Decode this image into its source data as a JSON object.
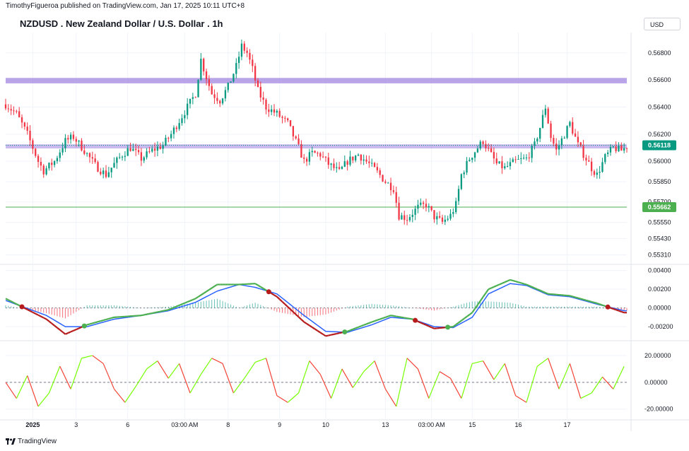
{
  "header": {
    "published_by": "TimothyFigueroa published on TradingView.com, Jan 17, 2025 10:11 UTC+8",
    "symbol_title": "NZDUSD . New Zealand Dollar / U.S. Dollar . 1h",
    "currency_button": "USD"
  },
  "footer": {
    "brand": "TradingView"
  },
  "colors": {
    "bull": "#089981",
    "bear": "#f23645",
    "zone": "#9c7fe0",
    "support": "#4caf50",
    "macd_fast": "#4caf50",
    "macd_slow": "#2962ff",
    "macd_alt": "#b71c1c",
    "osc_up": "#76ff03",
    "osc_down": "#f44336",
    "grid": "#f0f3fa"
  },
  "chart_data": [
    {
      "type": "candlestick",
      "title": "NZDUSD . New Zealand Dollar / U.S. Dollar . 1h",
      "ylim": [
        0.5525,
        0.5695
      ],
      "y_ticks": [
        "0.56800",
        "0.56600",
        "0.56400",
        "0.56200",
        "0.56000",
        "0.55850",
        "0.55700",
        "0.55550",
        "0.55430",
        "0.55310"
      ],
      "x_ticks": [
        "2025",
        "3",
        "6",
        "03:00 AM",
        "8",
        "9",
        "10",
        "13",
        "03:00 AM",
        "15",
        "16",
        "17"
      ],
      "price_path": [
        [
          0,
          0.5642
        ],
        [
          4,
          0.5635
        ],
        [
          8,
          0.562
        ],
        [
          12,
          0.56
        ],
        [
          14,
          0.5593
        ],
        [
          18,
          0.56
        ],
        [
          22,
          0.5615
        ],
        [
          25,
          0.5618
        ],
        [
          29,
          0.5608
        ],
        [
          33,
          0.5597
        ],
        [
          37,
          0.559
        ],
        [
          40,
          0.5598
        ],
        [
          43,
          0.5605
        ],
        [
          46,
          0.561
        ],
        [
          50,
          0.5602
        ],
        [
          54,
          0.5608
        ],
        [
          58,
          0.5612
        ],
        [
          61,
          0.562
        ],
        [
          64,
          0.563
        ],
        [
          67,
          0.564
        ],
        [
          70,
          0.565
        ],
        [
          72,
          0.5675
        ],
        [
          74,
          0.5662
        ],
        [
          76,
          0.565
        ],
        [
          79,
          0.5645
        ],
        [
          82,
          0.5655
        ],
        [
          85,
          0.567
        ],
        [
          87,
          0.5685
        ],
        [
          89,
          0.568
        ],
        [
          91,
          0.5668
        ],
        [
          93,
          0.5652
        ],
        [
          96,
          0.564
        ],
        [
          100,
          0.5635
        ],
        [
          104,
          0.5628
        ],
        [
          108,
          0.561
        ],
        [
          110,
          0.56
        ],
        [
          113,
          0.5606
        ],
        [
          116,
          0.5605
        ],
        [
          119,
          0.5598
        ],
        [
          123,
          0.5592
        ],
        [
          126,
          0.56
        ],
        [
          130,
          0.5605
        ],
        [
          134,
          0.5598
        ],
        [
          137,
          0.5592
        ],
        [
          140,
          0.5585
        ],
        [
          143,
          0.558
        ],
        [
          145,
          0.556
        ],
        [
          148,
          0.5558
        ],
        [
          152,
          0.5566
        ],
        [
          155,
          0.5568
        ],
        [
          158,
          0.5559
        ],
        [
          161,
          0.5555
        ],
        [
          164,
          0.556
        ],
        [
          166,
          0.5568
        ],
        [
          168,
          0.559
        ],
        [
          171,
          0.5602
        ],
        [
          174,
          0.561
        ],
        [
          176,
          0.5615
        ],
        [
          178,
          0.5608
        ],
        [
          181,
          0.5598
        ],
        [
          184,
          0.5595
        ],
        [
          188,
          0.56
        ],
        [
          192,
          0.5602
        ],
        [
          195,
          0.5612
        ],
        [
          197,
          0.5625
        ],
        [
          199,
          0.564
        ],
        [
          201,
          0.5618
        ],
        [
          203,
          0.5608
        ],
        [
          206,
          0.562
        ],
        [
          208,
          0.5628
        ],
        [
          211,
          0.5612
        ],
        [
          214,
          0.5602
        ],
        [
          216,
          0.5595
        ],
        [
          218,
          0.559
        ],
        [
          221,
          0.5603
        ],
        [
          224,
          0.561
        ],
        [
          227,
          0.5608
        ],
        [
          229,
          0.5611
        ]
      ],
      "last_price": "0.56118",
      "support_label": "0.55662",
      "resistance_zone": [
        0.56575,
        0.56615
      ],
      "mid_zone": [
        0.56095,
        0.56125
      ],
      "support_line": 0.55662
    },
    {
      "type": "line",
      "subtype": "macd",
      "ylim": [
        -0.00335,
        0.0045
      ],
      "y_ticks": [
        "0.00400",
        "0.00200",
        "0.00000",
        "-0.00200"
      ],
      "x": [
        0,
        15,
        22,
        30,
        40,
        50,
        60,
        70,
        78,
        86,
        92,
        100,
        110,
        118,
        126,
        135,
        142,
        150,
        158,
        165,
        172,
        178,
        186,
        192,
        200,
        208,
        218,
        228
      ],
      "series": [
        {
          "values": [
            0.001,
            -0.0012,
            -0.0028,
            -0.0018,
            -0.001,
            -0.0008,
            -0.0002,
            0.001,
            0.0025,
            0.0025,
            0.0026,
            0.0012,
            -0.0015,
            -0.003,
            -0.0025,
            -0.0015,
            -0.0008,
            -0.0012,
            -0.0022,
            -0.002,
            -0.0005,
            0.002,
            0.003,
            0.0025,
            0.0015,
            0.0013,
            0.0005,
            -0.0005
          ]
        },
        {
          "values": [
            0.0008,
            -0.0008,
            -0.002,
            -0.002,
            -0.0012,
            -0.0008,
            -0.0003,
            0.0006,
            0.0018,
            0.0025,
            0.0022,
            0.0015,
            -0.0008,
            -0.0025,
            -0.0026,
            -0.0018,
            -0.001,
            -0.0012,
            -0.002,
            -0.0021,
            -0.001,
            0.0015,
            0.0026,
            0.0024,
            0.0014,
            0.0012,
            0.0004,
            -0.0003
          ]
        }
      ]
    },
    {
      "type": "line",
      "subtype": "oscillator",
      "ylim": [
        -27,
        30
      ],
      "y_ticks": [
        "20.00000",
        "0.00000",
        "-20.00000"
      ],
      "x": [
        0,
        4,
        8,
        12,
        16,
        20,
        24,
        28,
        32,
        36,
        40,
        44,
        48,
        52,
        56,
        60,
        64,
        68,
        72,
        76,
        80,
        84,
        88,
        92,
        96,
        100,
        104,
        108,
        112,
        116,
        120,
        124,
        128,
        132,
        136,
        140,
        144,
        148,
        152,
        156,
        160,
        164,
        168,
        172,
        176,
        180,
        184,
        188,
        192,
        196,
        200,
        204,
        208,
        212,
        216,
        220,
        224,
        228
      ],
      "values": [
        0,
        -12,
        5,
        -18,
        -8,
        12,
        -5,
        18,
        20,
        14,
        -5,
        -15,
        -3,
        10,
        16,
        3,
        14,
        -8,
        6,
        18,
        14,
        -8,
        3,
        15,
        18,
        -10,
        -15,
        -8,
        16,
        6,
        -12,
        10,
        -4,
        8,
        16,
        -5,
        -18,
        18,
        10,
        -12,
        8,
        3,
        -12,
        14,
        16,
        2,
        14,
        -10,
        -15,
        12,
        18,
        -5,
        14,
        -12,
        -8,
        4,
        -5,
        12
      ]
    }
  ]
}
